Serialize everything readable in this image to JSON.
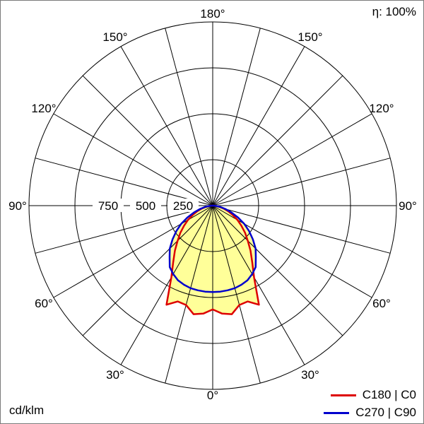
{
  "meta": {
    "eta": "η: 100%",
    "unit": "cd/klm"
  },
  "legend": [
    {
      "label": "C180 | C0",
      "color": "#dd0000"
    },
    {
      "label": "C270 | C90",
      "color": "#0000cd"
    }
  ],
  "chart_data": {
    "type": "polar",
    "subtype": "luminous-intensity-distribution",
    "unit": "cd/klm",
    "efficiency": "η: 100%",
    "radial_ticks": [
      250,
      500,
      750
    ],
    "radial_max": 1000,
    "spoke_step_deg": 15,
    "grid_color": "#000000",
    "fill_color": "#ffff99",
    "angle_labels": [
      {
        "deg": 0,
        "text": "0°"
      },
      {
        "deg": 30,
        "text": "30°"
      },
      {
        "deg": 60,
        "text": "60°"
      },
      {
        "deg": 90,
        "text": "90°"
      },
      {
        "deg": 120,
        "text": "120°"
      },
      {
        "deg": 150,
        "text": "150°"
      },
      {
        "deg": 180,
        "text": "180°"
      }
    ],
    "gamma_deg": [
      0,
      5,
      10,
      15,
      20,
      25,
      30,
      35,
      40,
      45,
      50,
      55,
      60,
      65,
      70,
      75,
      80,
      85,
      90
    ],
    "symmetric": true,
    "series": [
      {
        "name": "C180 | C0",
        "color": "#dd0000",
        "values": [
          565,
          590,
          600,
          560,
          555,
          595,
          450,
          375,
          320,
          270,
          230,
          190,
          155,
          120,
          90,
          62,
          38,
          18,
          6
        ]
      },
      {
        "name": "C270 | C90",
        "color": "#0000cd",
        "values": [
          470,
          470,
          468,
          465,
          458,
          448,
          430,
          408,
          365,
          330,
          285,
          242,
          198,
          152,
          108,
          72,
          42,
          20,
          6
        ]
      }
    ]
  }
}
